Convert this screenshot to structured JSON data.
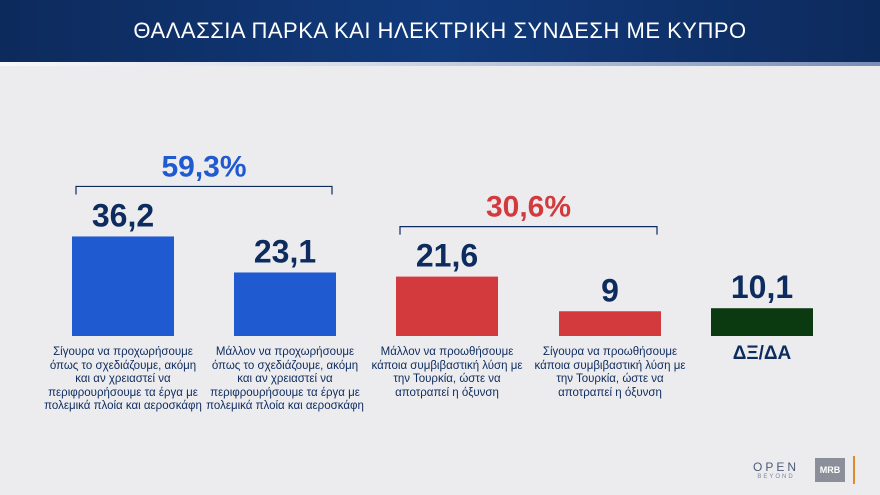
{
  "header": {
    "title": "ΘΑΛΑΣΣΙΑ ΠΑΡΚΑ ΚΑΙ ΗΛΕΚΤΡΙΚΗ ΣΥΝΔΕΣΗ ΜΕ ΚΥΠΡΟ"
  },
  "chart_data": {
    "type": "bar",
    "title": "ΘΑΛΑΣΣΙΑ ΠΑΡΚΑ ΚΑΙ ΗΛΕΚΤΡΙΚΗ ΣΥΝΔΕΣΗ ΜΕ ΚΥΠΡΟ",
    "categories": [
      "Σίγουρα να προχωρήσουμε όπως το σχεδιάζουμε, ακόμη και αν χρειαστεί να περιφρουρήσουμε τα έργα με πολεμικά πλοία και αεροσκάφη",
      "Μάλλον να προχωρήσουμε όπως το σχεδιάζουμε, ακόμη και αν χρειαστεί να περιφρουρήσουμε τα έργα με πολεμικά πλοία και αεροσκάφη",
      "Μάλλον να προωθήσουμε κάποια συμβιβαστική λύση με την Τουρκία, ώστε να αποτραπεί η όξυνση",
      "Σίγουρα να προωθήσουμε κάποια συμβιβαστική λύση με την Τουρκία, ώστε να αποτραπεί η όξυνση",
      "ΔΞ/ΔΑ"
    ],
    "values": [
      36.2,
      23.1,
      21.6,
      9,
      10.1
    ],
    "value_labels": [
      "36,2",
      "23,1",
      "21,6",
      "9",
      "10,1"
    ],
    "bar_colors": [
      "#1f5ad1",
      "#1f5ad1",
      "#d23a3e",
      "#d23a3e",
      "#0c3a10"
    ],
    "groups": [
      {
        "label": "59,3%",
        "members": [
          0,
          1
        ],
        "color": "#1f5ad1"
      },
      {
        "label": "30,6%",
        "members": [
          2,
          3
        ],
        "color": "#d23a3e"
      }
    ],
    "ylim": [
      0,
      40
    ],
    "grid": false,
    "xlabel": "",
    "ylabel": ""
  },
  "logos": {
    "open": "OPEN",
    "open_sub": "BEYOND",
    "mrb": "MRB"
  }
}
